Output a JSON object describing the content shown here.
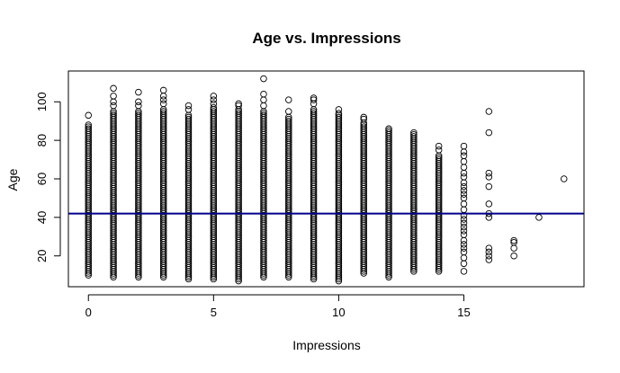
{
  "chart_data": {
    "type": "scatter",
    "title": "Age vs. Impressions",
    "xlabel": "Impressions",
    "ylabel": "Age",
    "xlim": [
      -0.8,
      19.8
    ],
    "ylim": [
      4,
      116
    ],
    "xticks": [
      0,
      5,
      10,
      15
    ],
    "yticks": [
      20,
      40,
      60,
      80,
      100
    ],
    "grid": false,
    "point_style": "open-circle",
    "reference_line": {
      "orientation": "horizontal",
      "y": 42,
      "color": "#00008b"
    },
    "columns": [
      {
        "x": 0,
        "min": 10,
        "max": 88,
        "extra": [
          93
        ]
      },
      {
        "x": 1,
        "min": 9,
        "max": 95,
        "extra": [
          98,
          100,
          103,
          107
        ]
      },
      {
        "x": 2,
        "min": 9,
        "max": 95,
        "extra": [
          98,
          100,
          105
        ]
      },
      {
        "x": 3,
        "min": 9,
        "max": 96,
        "extra": [
          99,
          101,
          103,
          106
        ]
      },
      {
        "x": 4,
        "min": 8,
        "max": 93,
        "extra": [
          96,
          98
        ]
      },
      {
        "x": 5,
        "min": 8,
        "max": 97,
        "extra": [
          99,
          101,
          103
        ]
      },
      {
        "x": 6,
        "min": 7,
        "max": 96,
        "extra": [
          98,
          99
        ]
      },
      {
        "x": 7,
        "min": 9,
        "max": 95,
        "extra": [
          98,
          101,
          104,
          112
        ]
      },
      {
        "x": 8,
        "min": 9,
        "max": 92,
        "extra": [
          95,
          101
        ]
      },
      {
        "x": 9,
        "min": 8,
        "max": 96,
        "extra": [
          99,
          101,
          102
        ]
      },
      {
        "x": 10,
        "min": 7,
        "max": 94,
        "extra": [
          96
        ]
      },
      {
        "x": 11,
        "min": 11,
        "max": 89,
        "extra": [
          91,
          92
        ]
      },
      {
        "x": 12,
        "min": 9,
        "max": 86,
        "extra": []
      },
      {
        "x": 13,
        "min": 12,
        "max": 84,
        "extra": []
      },
      {
        "x": 14,
        "min": 12,
        "max": 72,
        "extra": [
          75,
          77
        ]
      },
      {
        "x": 15,
        "values": [
          12,
          16,
          19,
          22,
          24,
          26,
          28,
          31,
          33,
          35,
          37,
          39,
          41,
          44,
          47,
          50,
          52,
          54,
          56,
          58,
          61,
          63,
          66,
          69,
          72,
          74,
          77
        ]
      },
      {
        "x": 16,
        "values": [
          18,
          20,
          22,
          24,
          40,
          42,
          47,
          56,
          61,
          63,
          84,
          95
        ]
      },
      {
        "x": 17,
        "values": [
          20,
          24,
          27,
          28
        ]
      },
      {
        "x": 18,
        "values": [
          40
        ]
      },
      {
        "x": 19,
        "values": [
          60
        ]
      }
    ]
  }
}
